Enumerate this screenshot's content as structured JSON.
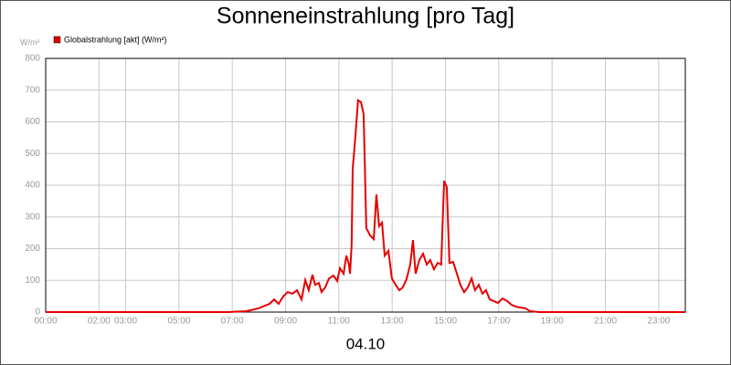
{
  "chart_data": {
    "type": "line",
    "title": "Sonneneinstrahlung [pro Tag]",
    "xlabel": "04.10",
    "ylabel": "W/m²",
    "x": [
      0,
      6.86,
      7.54,
      7.99,
      8.4,
      8.57,
      8.74,
      8.91,
      9.08,
      9.26,
      9.43,
      9.6,
      9.74,
      9.87,
      10.01,
      10.11,
      10.25,
      10.35,
      10.49,
      10.63,
      10.8,
      10.94,
      11.04,
      11.18,
      11.28,
      11.38,
      11.42,
      11.48,
      11.52,
      11.62,
      11.72,
      11.83,
      11.93,
      12.03,
      12.17,
      12.31,
      12.41,
      12.51,
      12.62,
      12.72,
      12.86,
      12.99,
      13.13,
      13.27,
      13.4,
      13.54,
      13.68,
      13.78,
      13.88,
      14.02,
      14.16,
      14.3,
      14.43,
      14.57,
      14.71,
      14.84,
      14.95,
      15.05,
      15.15,
      15.29,
      15.43,
      15.56,
      15.7,
      15.84,
      15.98,
      16.11,
      16.25,
      16.39,
      16.52,
      16.66,
      16.8,
      16.97,
      17.14,
      17.31,
      17.48,
      17.65,
      17.83,
      18.0,
      18.17,
      18.51,
      24
    ],
    "series": [
      {
        "name": "Globalstrahlung [akt] (W/m²)",
        "color": "#e60000",
        "values": [
          0,
          0,
          3,
          12,
          26,
          40,
          26,
          49,
          63,
          58,
          69,
          40,
          101,
          69,
          118,
          86,
          92,
          63,
          78,
          106,
          115,
          98,
          138,
          121,
          178,
          150,
          121,
          213,
          452,
          553,
          668,
          662,
          624,
          265,
          242,
          230,
          371,
          271,
          282,
          178,
          193,
          106,
          86,
          69,
          78,
          104,
          150,
          227,
          121,
          164,
          184,
          150,
          164,
          135,
          155,
          150,
          414,
          394,
          155,
          158,
          121,
          86,
          63,
          78,
          106,
          69,
          86,
          58,
          69,
          40,
          35,
          29,
          43,
          35,
          23,
          17,
          14,
          12,
          3,
          0,
          0
        ]
      }
    ],
    "xlim": [
      0,
      24
    ],
    "xticks": [
      {
        "value": 0,
        "label": "00:00"
      },
      {
        "value": 2,
        "label": "02:00"
      },
      {
        "value": 3,
        "label": "03:00"
      },
      {
        "value": 5,
        "label": "05:00"
      },
      {
        "value": 7,
        "label": "07:00"
      },
      {
        "value": 9,
        "label": "09:00"
      },
      {
        "value": 11,
        "label": "11:00"
      },
      {
        "value": 13,
        "label": "13:00"
      },
      {
        "value": 15,
        "label": "15:00"
      },
      {
        "value": 17,
        "label": "17:00"
      },
      {
        "value": 19,
        "label": "19:00"
      },
      {
        "value": 21,
        "label": "21:00"
      },
      {
        "value": 23,
        "label": "23:00"
      }
    ],
    "ylim": [
      0,
      800
    ],
    "yticks": [
      0,
      100,
      200,
      300,
      400,
      500,
      600,
      700,
      800
    ],
    "grid": true
  }
}
